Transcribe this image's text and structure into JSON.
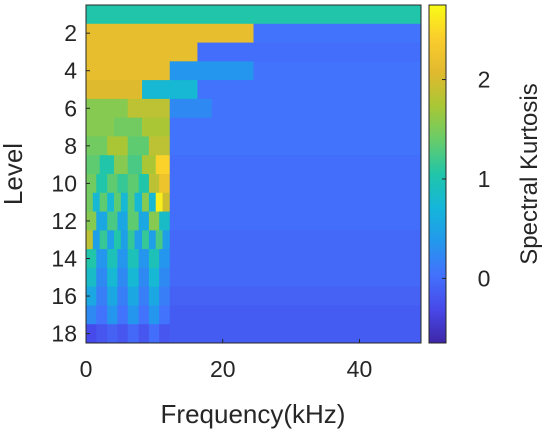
{
  "chart_data": {
    "type": "heatmap",
    "title": "",
    "xlabel": "Frequency(kHz)",
    "ylabel": "Level",
    "xlim": [
      0,
      49
    ],
    "ylim": [
      18.5,
      0.5
    ],
    "x_ticks": [
      0,
      20,
      40
    ],
    "y_ticks": [
      2,
      4,
      6,
      8,
      10,
      12,
      14,
      16,
      18
    ],
    "colorbar": {
      "label": "Spectral Kurtosis",
      "limits": [
        -0.65,
        2.75
      ],
      "ticks": [
        0,
        1,
        2
      ],
      "colormap": "parula"
    },
    "levels": [
      {
        "level": 1,
        "cells": [
          {
            "x": [
              0,
              49
            ],
            "value": 1.05
          }
        ]
      },
      {
        "level": 2,
        "cells": [
          {
            "x": [
              0,
              24.5
            ],
            "value": 2.15
          },
          {
            "x": [
              24.5,
              49
            ],
            "value": 0.05
          }
        ]
      },
      {
        "level": 3,
        "cells": [
          {
            "x": [
              0,
              16.3
            ],
            "value": 2.15
          },
          {
            "x": [
              16.3,
              49
            ],
            "value": 0.0
          }
        ]
      },
      {
        "level": 4,
        "cells": [
          {
            "x": [
              0,
              12.25
            ],
            "value": 2.15
          },
          {
            "x": [
              12.25,
              24.5
            ],
            "value": 0.35
          },
          {
            "x": [
              24.5,
              49
            ],
            "value": 0.05
          }
        ]
      },
      {
        "level": 5,
        "cells": [
          {
            "x": [
              0,
              8.2
            ],
            "value": 2.05
          },
          {
            "x": [
              8.2,
              12.25
            ],
            "value": 0.75
          },
          {
            "x": [
              12.25,
              16.3
            ],
            "value": 0.75
          },
          {
            "x": [
              16.3,
              49
            ],
            "value": 0.05
          }
        ]
      },
      {
        "level": 6,
        "cells": [
          {
            "x": [
              0,
              6.1
            ],
            "value": 1.55
          },
          {
            "x": [
              6.1,
              12.25
            ],
            "value": 1.85
          },
          {
            "x": [
              12.25,
              18.4
            ],
            "value": 0.25
          },
          {
            "x": [
              18.4,
              49
            ],
            "value": 0.05
          }
        ]
      },
      {
        "level": 7,
        "cells": [
          {
            "x": [
              0,
              4.1
            ],
            "value": 1.55
          },
          {
            "x": [
              4.1,
              8.2
            ],
            "value": 1.45
          },
          {
            "x": [
              8.2,
              12.25
            ],
            "value": 1.75
          },
          {
            "x": [
              12.25,
              49
            ],
            "value": 0.05
          }
        ]
      },
      {
        "level": 8,
        "cells": [
          {
            "x": [
              0,
              3.1
            ],
            "value": 1.45
          },
          {
            "x": [
              3.1,
              6.1
            ],
            "value": 1.75
          },
          {
            "x": [
              6.1,
              9.2
            ],
            "value": 1.35
          },
          {
            "x": [
              9.2,
              12.25
            ],
            "value": 1.85
          },
          {
            "x": [
              12.25,
              49
            ],
            "value": 0.05
          }
        ]
      },
      {
        "level": 9,
        "cells": [
          {
            "x": [
              0,
              2
            ],
            "value": 1.35
          },
          {
            "x": [
              2,
              4.1
            ],
            "value": 1.05
          },
          {
            "x": [
              4.1,
              6.1
            ],
            "value": 1.55
          },
          {
            "x": [
              6.1,
              8.2
            ],
            "value": 1.25
          },
          {
            "x": [
              8.2,
              10.2
            ],
            "value": 1.75
          },
          {
            "x": [
              10.2,
              12.25
            ],
            "value": 2.45
          },
          {
            "x": [
              12.25,
              49
            ],
            "value": 0.0
          }
        ]
      },
      {
        "level": 10,
        "cells": [
          {
            "x": [
              0,
              1.5
            ],
            "value": 1.45
          },
          {
            "x": [
              1.5,
              3.1
            ],
            "value": 1.05
          },
          {
            "x": [
              3.1,
              4.6
            ],
            "value": 1.35
          },
          {
            "x": [
              4.6,
              6.1
            ],
            "value": 1.15
          },
          {
            "x": [
              6.1,
              7.7
            ],
            "value": 1.35
          },
          {
            "x": [
              7.7,
              9.2
            ],
            "value": 1.05
          },
          {
            "x": [
              9.2,
              10.7
            ],
            "value": 1.85
          },
          {
            "x": [
              10.7,
              12.25
            ],
            "value": 2.25
          },
          {
            "x": [
              12.25,
              49
            ],
            "value": 0.0
          }
        ]
      },
      {
        "level": 11,
        "cells": [
          {
            "x": [
              0,
              1
            ],
            "value": 1.45
          },
          {
            "x": [
              1,
              2
            ],
            "value": 0.75
          },
          {
            "x": [
              2,
              3.1
            ],
            "value": 1.35
          },
          {
            "x": [
              3.1,
              4.1
            ],
            "value": 0.75
          },
          {
            "x": [
              4.1,
              5.1
            ],
            "value": 1.35
          },
          {
            "x": [
              5.1,
              6.1
            ],
            "value": 0.75
          },
          {
            "x": [
              6.1,
              7.1
            ],
            "value": 1.35
          },
          {
            "x": [
              7.1,
              8.2
            ],
            "value": 0.75
          },
          {
            "x": [
              8.2,
              9.2
            ],
            "value": 1.55
          },
          {
            "x": [
              9.2,
              10.2
            ],
            "value": 0.75
          },
          {
            "x": [
              10.2,
              11.2
            ],
            "value": 2.65
          },
          {
            "x": [
              11.2,
              12.25
            ],
            "value": 1.95
          },
          {
            "x": [
              12.25,
              49
            ],
            "value": 0.0
          }
        ]
      },
      {
        "level": 12,
        "cells": [
          {
            "x": [
              0,
              1.5
            ],
            "value": 1.55
          },
          {
            "x": [
              1.5,
              3.1
            ],
            "value": 0.55
          },
          {
            "x": [
              3.1,
              4.6
            ],
            "value": 1.25
          },
          {
            "x": [
              4.6,
              6.1
            ],
            "value": 0.55
          },
          {
            "x": [
              6.1,
              7.7
            ],
            "value": 1.35
          },
          {
            "x": [
              7.7,
              9.2
            ],
            "value": 0.55
          },
          {
            "x": [
              9.2,
              10.7
            ],
            "value": 1.55
          },
          {
            "x": [
              10.7,
              12.25
            ],
            "value": 0.85
          },
          {
            "x": [
              12.25,
              49
            ],
            "value": 0.0
          }
        ]
      },
      {
        "level": 13,
        "cells": [
          {
            "x": [
              0,
              1
            ],
            "value": 1.85
          },
          {
            "x": [
              1,
              2
            ],
            "value": 0.45
          },
          {
            "x": [
              2,
              3.1
            ],
            "value": 1.15
          },
          {
            "x": [
              3.1,
              4.1
            ],
            "value": 0.45
          },
          {
            "x": [
              4.1,
              5.1
            ],
            "value": 1.05
          },
          {
            "x": [
              5.1,
              6.1
            ],
            "value": 0.45
          },
          {
            "x": [
              6.1,
              7.1
            ],
            "value": 1.15
          },
          {
            "x": [
              7.1,
              8.2
            ],
            "value": 0.45
          },
          {
            "x": [
              8.2,
              9.2
            ],
            "value": 1.15
          },
          {
            "x": [
              9.2,
              10.2
            ],
            "value": 0.45
          },
          {
            "x": [
              10.2,
              11.2
            ],
            "value": 1.25
          },
          {
            "x": [
              11.2,
              12.25
            ],
            "value": 0.45
          },
          {
            "x": [
              12.25,
              49
            ],
            "value": -0.05
          }
        ]
      },
      {
        "level": 14,
        "cells": [
          {
            "x": [
              0,
              1.5
            ],
            "value": 1.05
          },
          {
            "x": [
              1.5,
              3.1
            ],
            "value": 0.35
          },
          {
            "x": [
              3.1,
              4.6
            ],
            "value": 0.95
          },
          {
            "x": [
              4.6,
              6.1
            ],
            "value": 0.35
          },
          {
            "x": [
              6.1,
              7.7
            ],
            "value": 0.95
          },
          {
            "x": [
              7.7,
              9.2
            ],
            "value": 0.35
          },
          {
            "x": [
              9.2,
              10.7
            ],
            "value": 0.95
          },
          {
            "x": [
              10.7,
              12.25
            ],
            "value": 0.35
          },
          {
            "x": [
              12.25,
              49
            ],
            "value": -0.05
          }
        ]
      },
      {
        "level": 15,
        "cells": [
          {
            "x": [
              0,
              1.5
            ],
            "value": 0.85
          },
          {
            "x": [
              1.5,
              3.1
            ],
            "value": 0.25
          },
          {
            "x": [
              3.1,
              4.6
            ],
            "value": 0.75
          },
          {
            "x": [
              4.6,
              6.1
            ],
            "value": 0.25
          },
          {
            "x": [
              6.1,
              7.7
            ],
            "value": 0.75
          },
          {
            "x": [
              7.7,
              9.2
            ],
            "value": 0.25
          },
          {
            "x": [
              9.2,
              10.7
            ],
            "value": 0.75
          },
          {
            "x": [
              10.7,
              12.25
            ],
            "value": 0.25
          },
          {
            "x": [
              12.25,
              49
            ],
            "value": -0.05
          }
        ]
      },
      {
        "level": 16,
        "cells": [
          {
            "x": [
              0,
              1.5
            ],
            "value": 0.55
          },
          {
            "x": [
              1.5,
              3.1
            ],
            "value": 0.15
          },
          {
            "x": [
              3.1,
              4.6
            ],
            "value": 0.55
          },
          {
            "x": [
              4.6,
              6.1
            ],
            "value": 0.15
          },
          {
            "x": [
              6.1,
              7.7
            ],
            "value": 0.55
          },
          {
            "x": [
              7.7,
              9.2
            ],
            "value": 0.15
          },
          {
            "x": [
              9.2,
              10.7
            ],
            "value": 0.55
          },
          {
            "x": [
              10.7,
              12.25
            ],
            "value": 0.15
          },
          {
            "x": [
              12.25,
              49
            ],
            "value": -0.1
          }
        ]
      },
      {
        "level": 17,
        "cells": [
          {
            "x": [
              0,
              1.5
            ],
            "value": 0.25
          },
          {
            "x": [
              1.5,
              3.1
            ],
            "value": 0.05
          },
          {
            "x": [
              3.1,
              4.6
            ],
            "value": 0.35
          },
          {
            "x": [
              4.6,
              6.1
            ],
            "value": 0.05
          },
          {
            "x": [
              6.1,
              7.7
            ],
            "value": 0.35
          },
          {
            "x": [
              7.7,
              9.2
            ],
            "value": 0.05
          },
          {
            "x": [
              9.2,
              10.7
            ],
            "value": 0.35
          },
          {
            "x": [
              10.7,
              12.25
            ],
            "value": 0.05
          },
          {
            "x": [
              12.25,
              49
            ],
            "value": -0.15
          }
        ]
      },
      {
        "level": 18,
        "cells": [
          {
            "x": [
              0,
              1.5
            ],
            "value": -0.3
          },
          {
            "x": [
              1.5,
              3.1
            ],
            "value": -0.2
          },
          {
            "x": [
              3.1,
              4.6
            ],
            "value": -0.1
          },
          {
            "x": [
              4.6,
              6.1
            ],
            "value": -0.2
          },
          {
            "x": [
              6.1,
              7.7
            ],
            "value": -0.05
          },
          {
            "x": [
              7.7,
              9.2
            ],
            "value": -0.2
          },
          {
            "x": [
              9.2,
              10.7
            ],
            "value": 0.0
          },
          {
            "x": [
              10.7,
              12.25
            ],
            "value": -0.2
          },
          {
            "x": [
              12.25,
              49
            ],
            "value": -0.15
          }
        ]
      }
    ]
  }
}
